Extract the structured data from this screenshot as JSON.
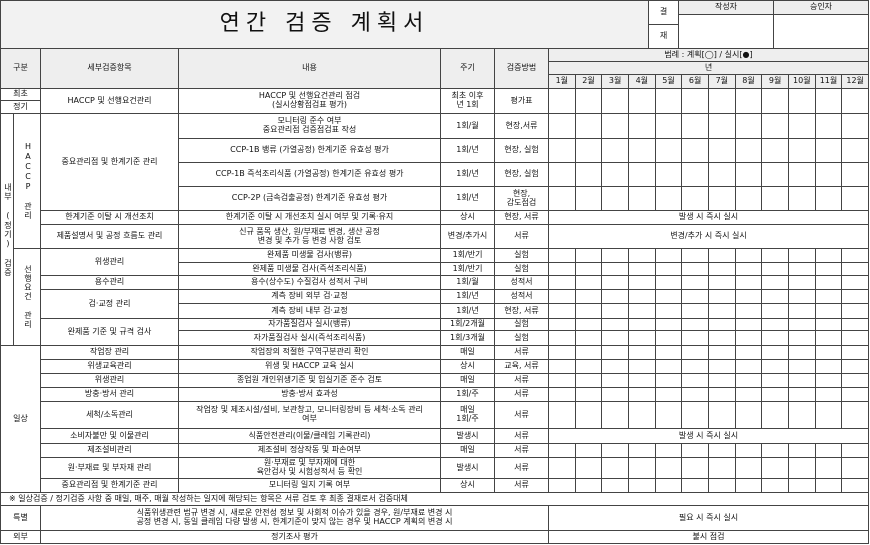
{
  "title": "연간 검증 계획서",
  "approval": {
    "label_top": "결",
    "label_bottom": "재",
    "writer": "작성자",
    "approver": "승인자"
  },
  "headers": {
    "category": "구분",
    "item": "세부검증항목",
    "content": "내용",
    "cycle": "주기",
    "method": "검증방법",
    "legend": "범례 : 계획[◯] / 실시[●]",
    "year": "년",
    "months": [
      "1월",
      "2월",
      "3월",
      "4월",
      "5월",
      "6월",
      "7월",
      "8월",
      "9월",
      "10월",
      "11월",
      "12월"
    ]
  },
  "groups": {
    "initial_a": "최초",
    "initial_b": "정기",
    "internal": "내부 (정기) 검증",
    "haccp": "HACCP 관리",
    "prereq": "선행요건 관리",
    "daily": "일상",
    "special": "특별",
    "external": "외부"
  },
  "rows": [
    {
      "item": "HACCP 및 선행요건관리",
      "content": "HACCP 및 선행요건관리 점검\n(실시상황점검표 평가)",
      "cycle": "최초 이후\n년 1회",
      "method": "평가표"
    },
    {
      "item": "",
      "content": "모니터링 준수 여부\n중요관리점 검증점검표 작성",
      "cycle": "1회/월",
      "method": "현장,서류"
    },
    {
      "item": "중요관리점 및 한계기준 관리",
      "content": "CCP-1B 뱅류 (가열공정) 한계기준 유효성 평가",
      "cycle": "1회/년",
      "method": "현장, 실험"
    },
    {
      "item": "",
      "content": "CCP-1B 즉석조리식품 (가열공정) 한계기준 유효성 평가",
      "cycle": "1회/년",
      "method": "현장, 실험"
    },
    {
      "item": "",
      "content": "CCP-2P (금속검출공정) 한계기준 유효성 평가",
      "cycle": "1회/년",
      "method": "현장,\n감도점검"
    },
    {
      "item": "한계기준 이탈 시 개선조치",
      "content": "한계기준 이탈 시 개선조치 실시 여부 및 기록·유지",
      "cycle": "상시",
      "method": "현장, 서류",
      "span": "발생 시 즉시 실시"
    },
    {
      "item": "제품설명서 및 공정 흐름도 관리",
      "content": "신규 품목 생산, 원/부재료 변경, 생산 공정\n변경 및 추가 등 변경 사항 검토",
      "cycle": "변경/추가시",
      "method": "서류",
      "span": "변경/추가 시 즉시 실시"
    },
    {
      "item": "위생관리",
      "content": "완제품 미생물 검사(뱅류)",
      "cycle": "1회/반기",
      "method": "실험"
    },
    {
      "item": "",
      "content": "완제품 미생물 검사(즉석조리식품)",
      "cycle": "1회/반기",
      "method": "실험"
    },
    {
      "item": "용수관리",
      "content": "용수(상수도) 수질검사 성적서 구비",
      "cycle": "1회/월",
      "method": "성적서"
    },
    {
      "item": "검·교정 관리",
      "content": "계측 장비 외부 검·교정",
      "cycle": "1회/년",
      "method": "성적서"
    },
    {
      "item": "",
      "content": "계측 장비 내부 검·교정",
      "cycle": "1회/년",
      "method": "현장, 서류"
    },
    {
      "item": "완제품 기준 및 규격 검사",
      "content": "자가품질검사 실시(뱅류)",
      "cycle": "1회/2개월",
      "method": "실험"
    },
    {
      "item": "",
      "content": "자가품질검사 실시(즉석조리식품)",
      "cycle": "1회/3개월",
      "method": "실험"
    },
    {
      "item": "작업장 관리",
      "content": "작업장의 적절한 구역구분관리 확인",
      "cycle": "매일",
      "method": "서류"
    },
    {
      "item": "위생교육관리",
      "content": "위생 및 HACCP 교육 실시",
      "cycle": "상시",
      "method": "교육, 서류"
    },
    {
      "item": "위생관리",
      "content": "종업원 개인위생기준 및 입실기준 준수 검토",
      "cycle": "매일",
      "method": "서류"
    },
    {
      "item": "방충·방서 관리",
      "content": "방충·방서 효과성",
      "cycle": "1회/주",
      "method": "서류"
    },
    {
      "item": "세척/소독관리",
      "content": "작업장 및 제조시설/설비, 보관창고, 모니터링장비 등 세척·소독 관리\n여부",
      "cycle": "매일\n1회/주",
      "method": "서류"
    },
    {
      "item": "소비자불만 및 이물관리",
      "content": "식품안전관리(이물/클레임 기록관리)",
      "cycle": "발생시",
      "method": "서류",
      "span": "발생 시 즉시 실시"
    },
    {
      "item": "제조설비관리",
      "content": "제조설비 정상작동 및 파손여부",
      "cycle": "매일",
      "method": "서류"
    },
    {
      "item": "원·부재료 및 부자재 관리",
      "content": "원·부재료 및 부자재에 대한\n육안검사 및 시험성적서 등 확인",
      "cycle": "발생시",
      "method": "서류"
    },
    {
      "item": "중요관리점 및 한계기준 관리",
      "content": "모니터링 일지 기록 여부",
      "cycle": "상시",
      "method": "서류"
    }
  ],
  "note": "※ 일상검증 / 정기검증 사항 중 매일, 매주, 매월 작성하는 일지에 해당되는 항목은 서류 검토 후 최종 결재로서 검증대체",
  "special": {
    "content": "식품위생관련 법규 변경 시, 새로운 안전성 정보 및 사회적 이슈가 있을 경우, 원/부재료 변경 시\n공정 변경 시, 동일 클레임 다량 발생 시, 한계기준이 맞지 않는 경우 및 HACCP 계획의 변경 시",
    "span": "필요 시 즉시 실시"
  },
  "external": {
    "content": "정기조사 평가",
    "span": "불시 점검"
  }
}
